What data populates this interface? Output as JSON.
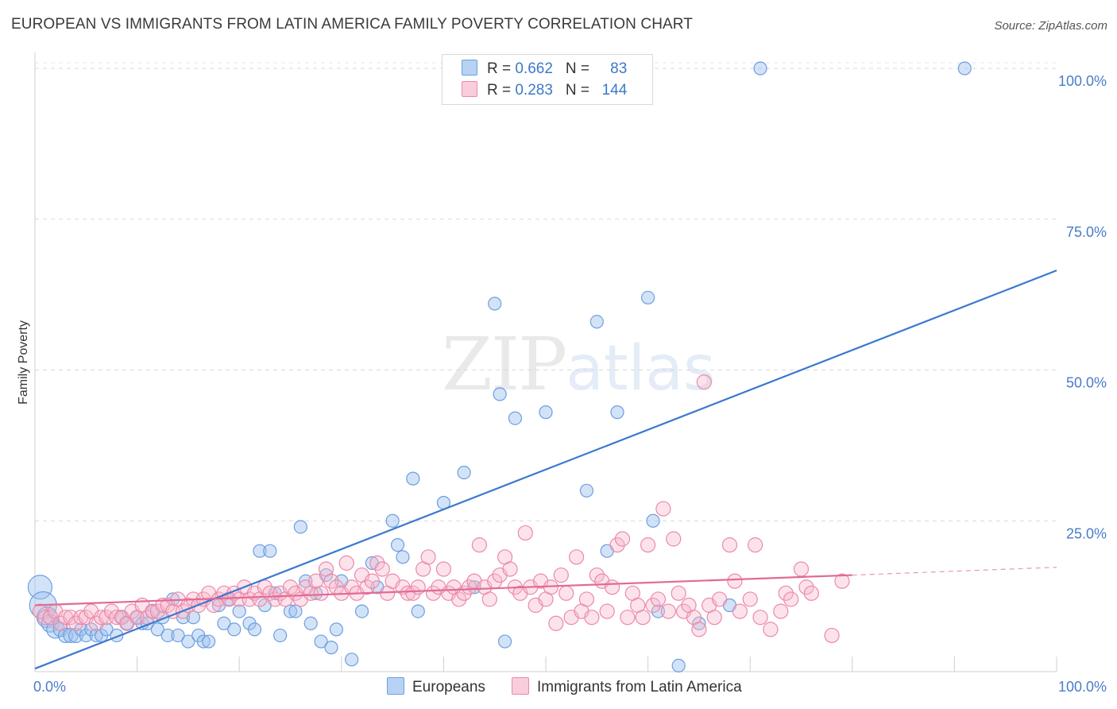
{
  "header": {
    "title": "EUROPEAN VS IMMIGRANTS FROM LATIN AMERICA FAMILY POVERTY CORRELATION CHART",
    "source": "Source: ZipAtlas.com"
  },
  "watermark": {
    "zip": "ZIP",
    "atlas": "atlas"
  },
  "legend": {
    "rows": [
      {
        "r_label": "R = ",
        "r_value": "0.662",
        "n_label": "N = ",
        "n_value": "83",
        "color": "#9ec1ee",
        "border": "#6c9fe0"
      },
      {
        "r_label": "R = ",
        "r_value": "0.283",
        "n_label": "N = ",
        "n_value": "144",
        "color": "#f7b9cc",
        "border": "#ec89a8"
      }
    ]
  },
  "bottom_legend": {
    "europeans": "Europeans",
    "latin": "Immigrants from Latin America"
  },
  "chart_data": {
    "type": "scatter",
    "title": "EUROPEAN VS IMMIGRANTS FROM LATIN AMERICA FAMILY POVERTY CORRELATION CHART",
    "ylabel": "Family Poverty",
    "xlabel": "",
    "xlim": [
      0,
      100
    ],
    "ylim": [
      0,
      100
    ],
    "x_tick_labels": [
      "0.0%",
      "100.0%"
    ],
    "y_tick_labels": [
      {
        "value": 100,
        "label": "100.0%"
      },
      {
        "value": 75,
        "label": "75.0%"
      },
      {
        "value": 50,
        "label": "50.0%"
      },
      {
        "value": 25,
        "label": "25.0%"
      }
    ],
    "grid": "horizontal dashed",
    "legend_placement": "top-center",
    "series": [
      {
        "name": "Europeans",
        "color": "#6c9fe0",
        "fill": "rgba(158,193,238,0.45)",
        "trend": {
          "x0": 0,
          "y0": 0.5,
          "x1": 100,
          "y1": 66.5,
          "color": "#3b78d0"
        },
        "points": [
          [
            0.5,
            14,
            14
          ],
          [
            0.8,
            11,
            16
          ],
          [
            1.2,
            9,
            12
          ],
          [
            1.5,
            8,
            10
          ],
          [
            2,
            7,
            10
          ],
          [
            2.5,
            7,
            8
          ],
          [
            3,
            6,
            8
          ],
          [
            3.5,
            6,
            8
          ],
          [
            4,
            6,
            8
          ],
          [
            4.5,
            7,
            7
          ],
          [
            5,
            6,
            7
          ],
          [
            5.5,
            7,
            7
          ],
          [
            6,
            6,
            7
          ],
          [
            6.5,
            6,
            7
          ],
          [
            7,
            7,
            7
          ],
          [
            8,
            6,
            7
          ],
          [
            8.5,
            9,
            7
          ],
          [
            9,
            8,
            7
          ],
          [
            10,
            9,
            7
          ],
          [
            10.5,
            8,
            7
          ],
          [
            11,
            8,
            7
          ],
          [
            11.5,
            10,
            7
          ],
          [
            12,
            7,
            7
          ],
          [
            12.5,
            9,
            7
          ],
          [
            13,
            6,
            7
          ],
          [
            13.5,
            12,
            7
          ],
          [
            14,
            6,
            7
          ],
          [
            14.5,
            9,
            7
          ],
          [
            15,
            5,
            7
          ],
          [
            15.5,
            9,
            7
          ],
          [
            16,
            6,
            7
          ],
          [
            16.5,
            5,
            7
          ],
          [
            17,
            5,
            7
          ],
          [
            18,
            11,
            7
          ],
          [
            18.5,
            8,
            7
          ],
          [
            19,
            12,
            7
          ],
          [
            19.5,
            7,
            7
          ],
          [
            20,
            10,
            7
          ],
          [
            21,
            8,
            7
          ],
          [
            21.5,
            7,
            7
          ],
          [
            22,
            20,
            7
          ],
          [
            22.5,
            11,
            7
          ],
          [
            23,
            20,
            7
          ],
          [
            23.5,
            13,
            7
          ],
          [
            24,
            6,
            7
          ],
          [
            25,
            10,
            7
          ],
          [
            25.5,
            10,
            7
          ],
          [
            26,
            24,
            7
          ],
          [
            26.5,
            15,
            7
          ],
          [
            27,
            8,
            7
          ],
          [
            27.5,
            13,
            7
          ],
          [
            28,
            5,
            7
          ],
          [
            28.5,
            16,
            7
          ],
          [
            29,
            4,
            7
          ],
          [
            29.5,
            7,
            7
          ],
          [
            30,
            15,
            7
          ],
          [
            31,
            2,
            7
          ],
          [
            32,
            10,
            7
          ],
          [
            33,
            18,
            7
          ],
          [
            33.5,
            14,
            7
          ],
          [
            35,
            25,
            7
          ],
          [
            35.5,
            21,
            7
          ],
          [
            36,
            19,
            7
          ],
          [
            37,
            32,
            7
          ],
          [
            37.5,
            10,
            7
          ],
          [
            40,
            28,
            7
          ],
          [
            42,
            33,
            7
          ],
          [
            43,
            14,
            7
          ],
          [
            45,
            61,
            7
          ],
          [
            45.5,
            46,
            7
          ],
          [
            46,
            5,
            7
          ],
          [
            47,
            42,
            7
          ],
          [
            50,
            43,
            7
          ],
          [
            54,
            30,
            7
          ],
          [
            55,
            58,
            7
          ],
          [
            56,
            20,
            7
          ],
          [
            57,
            43,
            7
          ],
          [
            60,
            62,
            7
          ],
          [
            60.5,
            25,
            7
          ],
          [
            61,
            10,
            7
          ],
          [
            63,
            1,
            7
          ],
          [
            65,
            8,
            7
          ],
          [
            68,
            11,
            7
          ],
          [
            71,
            100,
            7
          ],
          [
            91,
            100,
            7
          ]
        ]
      },
      {
        "name": "Immigrants from Latin America",
        "color": "#ec89a8",
        "fill": "rgba(247,185,204,0.40)",
        "trend": {
          "x0": 0,
          "y0": 11,
          "x1": 80,
          "y1": 16,
          "color": "#e06b95"
        },
        "trend_dashed": {
          "x0": 80,
          "y0": 16,
          "x1": 100,
          "y1": 17.3,
          "color": "#e06b95"
        },
        "points": [
          [
            0.5,
            10,
            8
          ],
          [
            1,
            9,
            8
          ],
          [
            1.5,
            9,
            8
          ],
          [
            2,
            10,
            8
          ],
          [
            2.5,
            8,
            8
          ],
          [
            3,
            9,
            8
          ],
          [
            3.5,
            9,
            8
          ],
          [
            4,
            8,
            8
          ],
          [
            4.5,
            9,
            8
          ],
          [
            5,
            9,
            8
          ],
          [
            5.5,
            10,
            8
          ],
          [
            6,
            8,
            8
          ],
          [
            6.5,
            9,
            8
          ],
          [
            7,
            9,
            8
          ],
          [
            7.5,
            10,
            8
          ],
          [
            8,
            9,
            8
          ],
          [
            8.5,
            9,
            8
          ],
          [
            9,
            8,
            8
          ],
          [
            9.5,
            10,
            8
          ],
          [
            10,
            9,
            8
          ],
          [
            10.5,
            11,
            8
          ],
          [
            11,
            9,
            8
          ],
          [
            11.5,
            10,
            8
          ],
          [
            12,
            10,
            8
          ],
          [
            12.5,
            11,
            8
          ],
          [
            13,
            11,
            8
          ],
          [
            13.5,
            10,
            8
          ],
          [
            14,
            12,
            8
          ],
          [
            14.5,
            10,
            8
          ],
          [
            15,
            11,
            8
          ],
          [
            15.5,
            12,
            8
          ],
          [
            16,
            11,
            8
          ],
          [
            16.5,
            12,
            8
          ],
          [
            17,
            13,
            8
          ],
          [
            17.5,
            11,
            8
          ],
          [
            18,
            12,
            8
          ],
          [
            18.5,
            13,
            8
          ],
          [
            19,
            12,
            8
          ],
          [
            19.5,
            13,
            8
          ],
          [
            20,
            12,
            8
          ],
          [
            20.5,
            14,
            8
          ],
          [
            21,
            12,
            8
          ],
          [
            21.5,
            13,
            8
          ],
          [
            22,
            12,
            8
          ],
          [
            22.5,
            14,
            8
          ],
          [
            23,
            13,
            8
          ],
          [
            23.5,
            12,
            8
          ],
          [
            24,
            13,
            8
          ],
          [
            24.5,
            12,
            8
          ],
          [
            25,
            14,
            8
          ],
          [
            25.5,
            13,
            8
          ],
          [
            26,
            12,
            8
          ],
          [
            26.5,
            14,
            8
          ],
          [
            27,
            13,
            8
          ],
          [
            27.5,
            15,
            8
          ],
          [
            28,
            13,
            8
          ],
          [
            28.5,
            17,
            8
          ],
          [
            29,
            15,
            8
          ],
          [
            29.5,
            14,
            8
          ],
          [
            30,
            13,
            8
          ],
          [
            30.5,
            18,
            8
          ],
          [
            31,
            14,
            8
          ],
          [
            31.5,
            13,
            8
          ],
          [
            32,
            16,
            8
          ],
          [
            32.5,
            14,
            8
          ],
          [
            33,
            15,
            8
          ],
          [
            33.5,
            18,
            8
          ],
          [
            34,
            17,
            8
          ],
          [
            34.5,
            13,
            8
          ],
          [
            35,
            15,
            8
          ],
          [
            36,
            14,
            8
          ],
          [
            36.5,
            13,
            8
          ],
          [
            37,
            13,
            8
          ],
          [
            37.5,
            14,
            8
          ],
          [
            38,
            17,
            8
          ],
          [
            38.5,
            19,
            8
          ],
          [
            39,
            13,
            8
          ],
          [
            39.5,
            14,
            8
          ],
          [
            40,
            17,
            8
          ],
          [
            40.5,
            13,
            8
          ],
          [
            41,
            14,
            8
          ],
          [
            41.5,
            12,
            8
          ],
          [
            42,
            13,
            8
          ],
          [
            42.5,
            14,
            8
          ],
          [
            43,
            15,
            8
          ],
          [
            43.5,
            21,
            8
          ],
          [
            44,
            14,
            8
          ],
          [
            44.5,
            12,
            8
          ],
          [
            45,
            15,
            8
          ],
          [
            45.5,
            16,
            8
          ],
          [
            46,
            19,
            8
          ],
          [
            46.5,
            17,
            8
          ],
          [
            47,
            14,
            8
          ],
          [
            47.5,
            13,
            8
          ],
          [
            48,
            23,
            8
          ],
          [
            48.5,
            14,
            8
          ],
          [
            49,
            11,
            8
          ],
          [
            49.5,
            15,
            8
          ],
          [
            50,
            12,
            8
          ],
          [
            50.5,
            14,
            8
          ],
          [
            51,
            8,
            8
          ],
          [
            51.5,
            16,
            8
          ],
          [
            52,
            13,
            8
          ],
          [
            52.5,
            9,
            8
          ],
          [
            53,
            19,
            8
          ],
          [
            53.5,
            10,
            8
          ],
          [
            54,
            12,
            8
          ],
          [
            54.5,
            9,
            8
          ],
          [
            55,
            16,
            8
          ],
          [
            55.5,
            15,
            8
          ],
          [
            56,
            10,
            8
          ],
          [
            56.5,
            14,
            8
          ],
          [
            57,
            21,
            8
          ],
          [
            57.5,
            22,
            8
          ],
          [
            58,
            9,
            8
          ],
          [
            58.5,
            13,
            8
          ],
          [
            59,
            11,
            8
          ],
          [
            59.5,
            9,
            8
          ],
          [
            60,
            21,
            8
          ],
          [
            60.5,
            11,
            8
          ],
          [
            61,
            12,
            8
          ],
          [
            61.5,
            27,
            8
          ],
          [
            62,
            10,
            8
          ],
          [
            62.5,
            22,
            8
          ],
          [
            63,
            13,
            8
          ],
          [
            63.5,
            10,
            8
          ],
          [
            64,
            11,
            8
          ],
          [
            64.5,
            9,
            8
          ],
          [
            65,
            7,
            8
          ],
          [
            65.5,
            48,
            8
          ],
          [
            66,
            11,
            8
          ],
          [
            66.5,
            9,
            8
          ],
          [
            67,
            12,
            8
          ],
          [
            68,
            21,
            8
          ],
          [
            68.5,
            15,
            8
          ],
          [
            69,
            10,
            8
          ],
          [
            70,
            12,
            8
          ],
          [
            70.5,
            21,
            8
          ],
          [
            71,
            9,
            8
          ],
          [
            72,
            7,
            8
          ],
          [
            73,
            10,
            8
          ],
          [
            73.5,
            13,
            8
          ],
          [
            74,
            12,
            8
          ],
          [
            75,
            17,
            8
          ],
          [
            75.5,
            14,
            8
          ],
          [
            76,
            13,
            8
          ],
          [
            78,
            6,
            8
          ],
          [
            79,
            15,
            8
          ]
        ]
      }
    ]
  }
}
